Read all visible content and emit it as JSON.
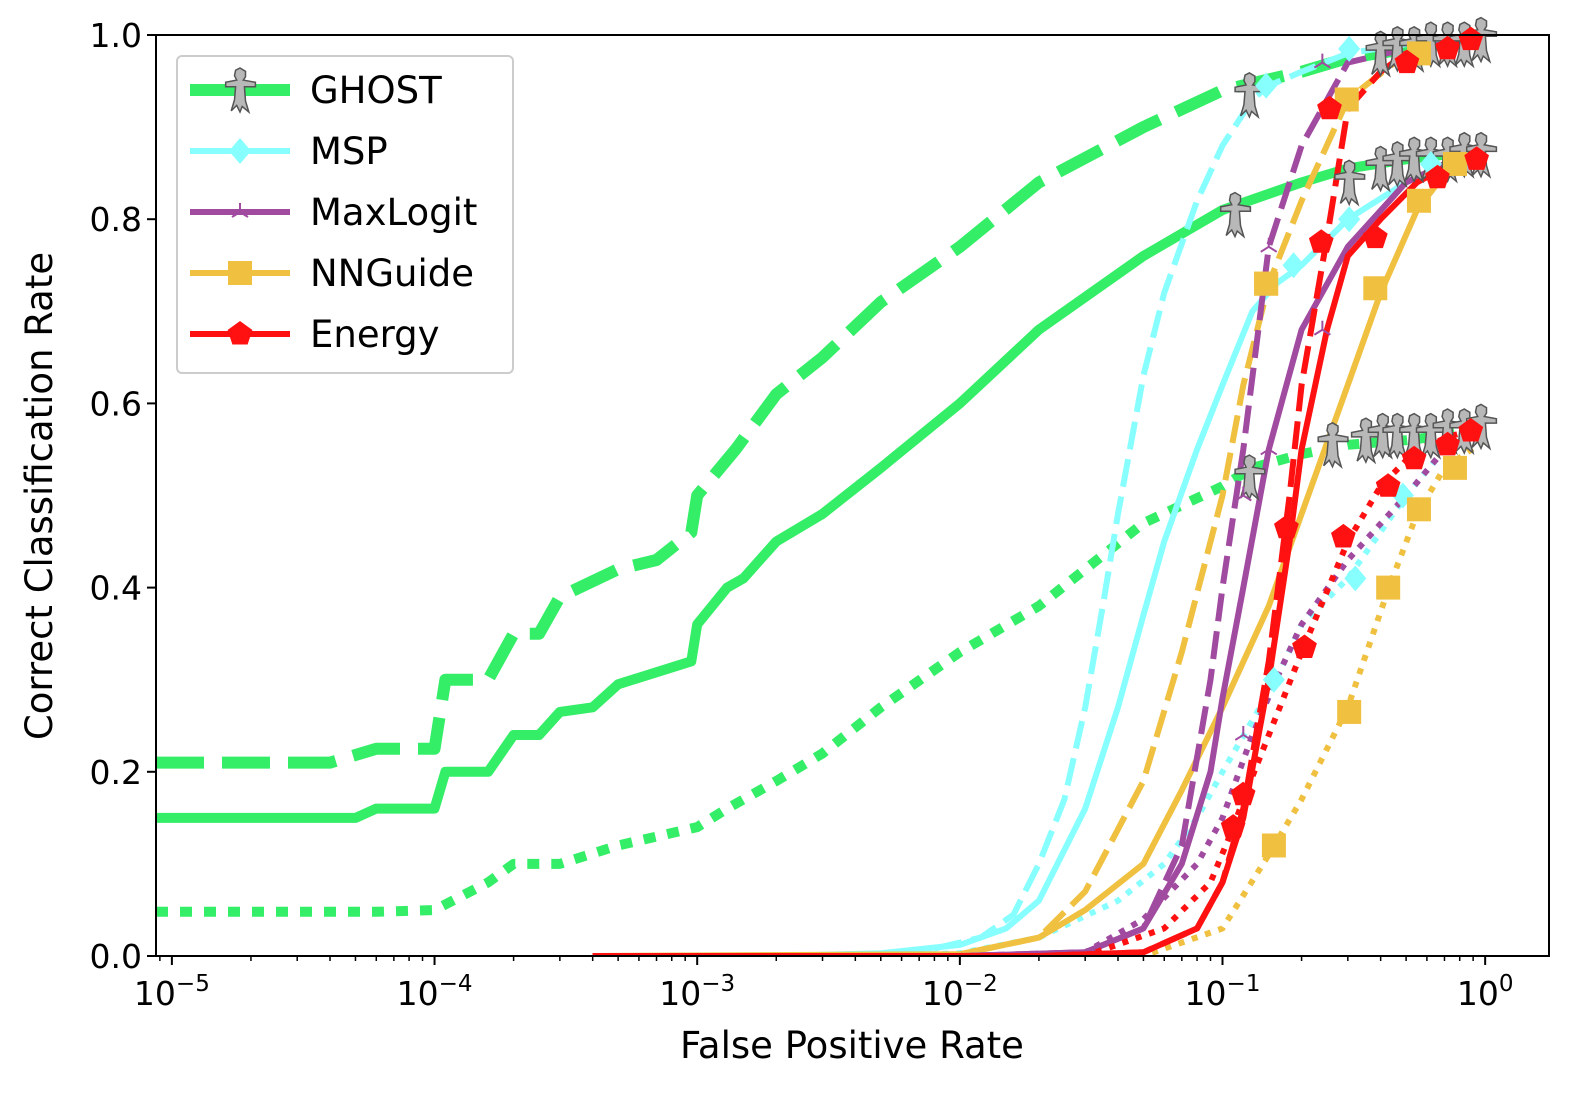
{
  "chart_data": {
    "type": "line",
    "xlabel": "False Positive Rate",
    "ylabel": "Correct Classification Rate",
    "xscale": "log",
    "xlim": [
      8.7e-06,
      1.75
    ],
    "ylim": [
      0,
      1.0
    ],
    "x_ticks": [
      {
        "value": 1e-05,
        "base": "10",
        "exp": "−5"
      },
      {
        "value": 0.0001,
        "base": "10",
        "exp": "−4"
      },
      {
        "value": 0.001,
        "base": "10",
        "exp": "−3"
      },
      {
        "value": 0.01,
        "base": "10",
        "exp": "−2"
      },
      {
        "value": 0.1,
        "base": "10",
        "exp": "−1"
      },
      {
        "value": 1,
        "base": "10",
        "exp": "0"
      }
    ],
    "y_ticks": [
      {
        "value": 0.0,
        "label": "0.0"
      },
      {
        "value": 0.2,
        "label": "0.2"
      },
      {
        "value": 0.4,
        "label": "0.4"
      },
      {
        "value": 0.6,
        "label": "0.6"
      },
      {
        "value": 0.8,
        "label": "0.8"
      },
      {
        "value": 1.0,
        "label": "1.0"
      }
    ],
    "legend_position": "top-left",
    "legend": [
      {
        "name": "GHOST",
        "color": "#33ee66",
        "marker": "ghost"
      },
      {
        "name": "MSP",
        "color": "#88ffff",
        "marker": "diamond"
      },
      {
        "name": "MaxLogit",
        "color": "#a04aa0",
        "marker": "tri"
      },
      {
        "name": "NNGuide",
        "color": "#f0c040",
        "marker": "square"
      },
      {
        "name": "Energy",
        "color": "#ff1111",
        "marker": "pentagon"
      }
    ],
    "series": [
      {
        "method": "GHOST",
        "style": "dashed",
        "color": "#33ee66",
        "marker": "ghost",
        "x": [
          8.7e-06,
          4e-05,
          6e-05,
          0.0001,
          0.00011,
          0.00016,
          0.0002,
          0.00025,
          0.0003,
          0.0005,
          0.0007,
          0.00095,
          0.001,
          0.0014,
          0.002,
          0.003,
          0.005,
          0.01,
          0.02,
          0.05,
          0.1,
          0.2,
          0.3,
          0.5,
          0.7,
          1.0
        ],
        "y": [
          0.21,
          0.21,
          0.225,
          0.225,
          0.3,
          0.3,
          0.35,
          0.35,
          0.39,
          0.42,
          0.43,
          0.46,
          0.5,
          0.55,
          0.61,
          0.65,
          0.71,
          0.77,
          0.84,
          0.9,
          0.94,
          0.96,
          0.975,
          0.985,
          0.99,
          0.995
        ]
      },
      {
        "method": "GHOST",
        "style": "solid",
        "color": "#33ee66",
        "marker": "ghost",
        "x": [
          8.7e-06,
          5e-05,
          6e-05,
          0.0001,
          0.00011,
          0.00016,
          0.0002,
          0.00025,
          0.0003,
          0.0004,
          0.0005,
          0.00095,
          0.001,
          0.0013,
          0.0015,
          0.002,
          0.003,
          0.005,
          0.01,
          0.02,
          0.05,
          0.1,
          0.2,
          0.3,
          0.5,
          0.7,
          1.0
        ],
        "y": [
          0.15,
          0.15,
          0.16,
          0.16,
          0.2,
          0.2,
          0.24,
          0.24,
          0.265,
          0.27,
          0.295,
          0.32,
          0.36,
          0.4,
          0.41,
          0.45,
          0.48,
          0.53,
          0.6,
          0.68,
          0.76,
          0.81,
          0.84,
          0.855,
          0.865,
          0.87,
          0.87
        ]
      },
      {
        "method": "GHOST",
        "style": "dotted",
        "color": "#33ee66",
        "marker": "ghost",
        "x": [
          8.7e-06,
          6e-05,
          0.0001,
          0.00016,
          0.0002,
          0.0003,
          0.0005,
          0.001,
          0.0013,
          0.002,
          0.003,
          0.005,
          0.01,
          0.02,
          0.05,
          0.1,
          0.13,
          0.2,
          0.3,
          0.5,
          0.7,
          1.0
        ],
        "y": [
          0.048,
          0.048,
          0.05,
          0.08,
          0.1,
          0.1,
          0.12,
          0.14,
          0.16,
          0.19,
          0.22,
          0.27,
          0.33,
          0.38,
          0.47,
          0.51,
          0.53,
          0.545,
          0.555,
          0.56,
          0.565,
          0.575
        ]
      },
      {
        "method": "MSP",
        "style": "dashed",
        "color": "#88ffff",
        "marker": "diamond",
        "x": [
          0.0004,
          0.002,
          0.005,
          0.008,
          0.012,
          0.016,
          0.02,
          0.025,
          0.03,
          0.035,
          0.04,
          0.05,
          0.06,
          0.08,
          0.1,
          0.13,
          0.15,
          0.2,
          0.3,
          0.5,
          0.7,
          1.0
        ],
        "y": [
          0,
          0,
          0.002,
          0.008,
          0.02,
          0.045,
          0.1,
          0.17,
          0.27,
          0.38,
          0.48,
          0.63,
          0.72,
          0.82,
          0.88,
          0.93,
          0.945,
          0.96,
          0.98,
          0.99,
          0.995,
          1.0
        ]
      },
      {
        "method": "MSP",
        "style": "solid",
        "color": "#88ffff",
        "marker": "diamond",
        "x": [
          0.0004,
          0.002,
          0.005,
          0.01,
          0.015,
          0.02,
          0.03,
          0.04,
          0.05,
          0.06,
          0.08,
          0.1,
          0.13,
          0.16,
          0.2,
          0.3,
          0.5,
          0.7,
          1.0
        ],
        "y": [
          0,
          0,
          0.003,
          0.012,
          0.03,
          0.06,
          0.16,
          0.27,
          0.37,
          0.45,
          0.55,
          0.62,
          0.7,
          0.73,
          0.75,
          0.8,
          0.84,
          0.86,
          0.87
        ]
      },
      {
        "method": "MSP",
        "style": "dotted",
        "color": "#88ffff",
        "marker": "diamond",
        "x": [
          0.0004,
          0.005,
          0.01,
          0.02,
          0.04,
          0.06,
          0.08,
          0.1,
          0.16,
          0.2,
          0.3,
          0.5,
          0.7,
          1.0
        ],
        "y": [
          0,
          0,
          0.003,
          0.02,
          0.06,
          0.1,
          0.15,
          0.2,
          0.3,
          0.36,
          0.41,
          0.5,
          0.55,
          0.57
        ]
      },
      {
        "method": "MaxLogit",
        "style": "dashed",
        "color": "#a04aa0",
        "marker": "tri",
        "x": [
          0.0004,
          0.01,
          0.03,
          0.05,
          0.07,
          0.09,
          0.1,
          0.12,
          0.15,
          0.2,
          0.3,
          0.5,
          0.7,
          1.0
        ],
        "y": [
          0,
          0,
          0.004,
          0.03,
          0.12,
          0.3,
          0.4,
          0.55,
          0.77,
          0.88,
          0.97,
          0.985,
          0.99,
          1.0
        ]
      },
      {
        "method": "MaxLogit",
        "style": "solid",
        "color": "#a04aa0",
        "marker": "tri",
        "x": [
          0.0004,
          0.01,
          0.03,
          0.05,
          0.07,
          0.09,
          0.1,
          0.12,
          0.15,
          0.2,
          0.3,
          0.5,
          0.7,
          1.0
        ],
        "y": [
          0,
          0,
          0.004,
          0.03,
          0.1,
          0.2,
          0.28,
          0.4,
          0.55,
          0.68,
          0.77,
          0.84,
          0.86,
          0.87
        ]
      },
      {
        "method": "MaxLogit",
        "style": "dotted",
        "color": "#a04aa0",
        "marker": "tri",
        "x": [
          0.0004,
          0.01,
          0.03,
          0.05,
          0.08,
          0.1,
          0.13,
          0.16,
          0.2,
          0.3,
          0.5,
          0.7,
          1.0
        ],
        "y": [
          0,
          0,
          0.004,
          0.04,
          0.1,
          0.15,
          0.24,
          0.3,
          0.36,
          0.43,
          0.5,
          0.55,
          0.57
        ]
      },
      {
        "method": "NNGuide",
        "style": "dashed",
        "color": "#f0c040",
        "marker": "square",
        "x": [
          0.0004,
          0.005,
          0.01,
          0.02,
          0.03,
          0.05,
          0.07,
          0.1,
          0.12,
          0.15,
          0.2,
          0.3,
          0.5,
          0.7,
          1.0
        ],
        "y": [
          0,
          0,
          0.002,
          0.02,
          0.07,
          0.19,
          0.33,
          0.5,
          0.62,
          0.73,
          0.82,
          0.93,
          0.98,
          0.99,
          1.0
        ]
      },
      {
        "method": "NNGuide",
        "style": "solid",
        "color": "#f0c040",
        "marker": "square",
        "x": [
          0.0004,
          0.01,
          0.02,
          0.03,
          0.05,
          0.07,
          0.1,
          0.15,
          0.2,
          0.3,
          0.4,
          0.55,
          0.75,
          1.0
        ],
        "y": [
          0,
          0.002,
          0.02,
          0.05,
          0.1,
          0.18,
          0.27,
          0.38,
          0.48,
          0.62,
          0.72,
          0.81,
          0.86,
          0.87
        ]
      },
      {
        "method": "NNGuide",
        "style": "dotted",
        "color": "#f0c040",
        "marker": "square",
        "x": [
          0.0004,
          0.05,
          0.1,
          0.15,
          0.2,
          0.3,
          0.43,
          0.55,
          0.7,
          1.0
        ],
        "y": [
          0,
          0,
          0.03,
          0.11,
          0.17,
          0.27,
          0.4,
          0.48,
          0.53,
          0.56
        ]
      },
      {
        "method": "Energy",
        "style": "dashed",
        "color": "#ff1111",
        "marker": "pentagon",
        "x": [
          0.0004,
          0.02,
          0.05,
          0.08,
          0.1,
          0.12,
          0.15,
          0.18,
          0.2,
          0.25,
          0.3,
          0.4,
          0.5,
          0.7,
          1.0
        ],
        "y": [
          0,
          0,
          0.004,
          0.03,
          0.08,
          0.16,
          0.32,
          0.5,
          0.62,
          0.78,
          0.92,
          0.96,
          0.98,
          0.99,
          1.0
        ]
      },
      {
        "method": "Energy",
        "style": "solid",
        "color": "#ff1111",
        "marker": "pentagon",
        "x": [
          0.0004,
          0.02,
          0.05,
          0.08,
          0.1,
          0.12,
          0.15,
          0.18,
          0.2,
          0.25,
          0.3,
          0.4,
          0.55,
          0.75,
          1.0
        ],
        "y": [
          0,
          0,
          0.004,
          0.03,
          0.08,
          0.15,
          0.3,
          0.45,
          0.55,
          0.68,
          0.76,
          0.8,
          0.84,
          0.86,
          0.87
        ]
      },
      {
        "method": "Energy",
        "style": "dotted",
        "color": "#ff1111",
        "marker": "pentagon",
        "x": [
          0.0004,
          0.03,
          0.06,
          0.09,
          0.11,
          0.12,
          0.15,
          0.2,
          0.3,
          0.4,
          0.55,
          0.75,
          1.0
        ],
        "y": [
          0,
          0,
          0.03,
          0.08,
          0.14,
          0.17,
          0.24,
          0.33,
          0.45,
          0.51,
          0.55,
          0.565,
          0.575
        ]
      }
    ],
    "markers": [
      {
        "method": "GHOST",
        "shape": "ghost",
        "color": "#b8b8b8",
        "x": [
          0.1266,
          0.4,
          0.4632,
          0.5364,
          0.6211,
          0.7192,
          0.8328,
          0.9644,
          0.1116,
          0.3036,
          0.4,
          0.4632,
          0.5364,
          0.6211,
          0.7192,
          0.8328,
          0.9644,
          0.1266,
          0.2622,
          0.3516,
          0.4071,
          0.4632,
          0.5364,
          0.6211,
          0.7192,
          0.8328,
          0.9644
        ],
        "y": [
          0.935,
          0.98,
          0.985,
          0.985,
          0.99,
          0.99,
          0.99,
          0.995,
          0.805,
          0.84,
          0.855,
          0.86,
          0.865,
          0.865,
          0.865,
          0.87,
          0.87,
          0.52,
          0.555,
          0.56,
          0.565,
          0.565,
          0.565,
          0.565,
          0.57,
          0.57,
          0.575
        ]
      },
      {
        "method": "MSP",
        "shape": "diamond",
        "color": "#88ffff",
        "x": [
          0.1466,
          0.3036,
          0.1865,
          0.3036,
          0.6211,
          0.1569,
          0.3203,
          0.4859
        ],
        "y": [
          0.945,
          0.985,
          0.75,
          0.8,
          0.86,
          0.3,
          0.41,
          0.5
        ]
      },
      {
        "method": "MaxLogit",
        "shape": "tri",
        "x": [
          0.15,
          0.24,
          0.12,
          0.15,
          0.24,
          0.12
        ],
        "y": [
          0.77,
          0.97,
          0.5,
          0.55,
          0.68,
          0.24
        ]
      },
      {
        "method": "NNGuide",
        "shape": "square",
        "color": "#f0c040",
        "x": [
          0.1466,
          0.2972,
          0.5596,
          0.1466,
          0.3817,
          0.5596,
          0.7673,
          0.1569,
          0.3036,
          0.4273,
          0.5596,
          0.7673
        ],
        "y": [
          0.73,
          0.93,
          0.98,
          0.73,
          0.725,
          0.82,
          0.86,
          0.12,
          0.265,
          0.4,
          0.485,
          0.53
        ]
      },
      {
        "method": "Energy",
        "shape": "pentagon",
        "color": "#ff1111",
        "x": [
          0.2555,
          0.5037,
          0.7192,
          0.8816,
          0.1751,
          0.2377,
          0.3817,
          0.6582,
          0.9279,
          0.1098,
          0.1198,
          0.2052,
          0.2885,
          0.4272,
          0.5364,
          0.7192,
          0.8816
        ],
        "y": [
          0.92,
          0.97,
          0.985,
          0.995,
          0.465,
          0.775,
          0.78,
          0.845,
          0.865,
          0.14,
          0.175,
          0.335,
          0.455,
          0.51,
          0.54,
          0.555,
          0.57
        ]
      }
    ]
  }
}
